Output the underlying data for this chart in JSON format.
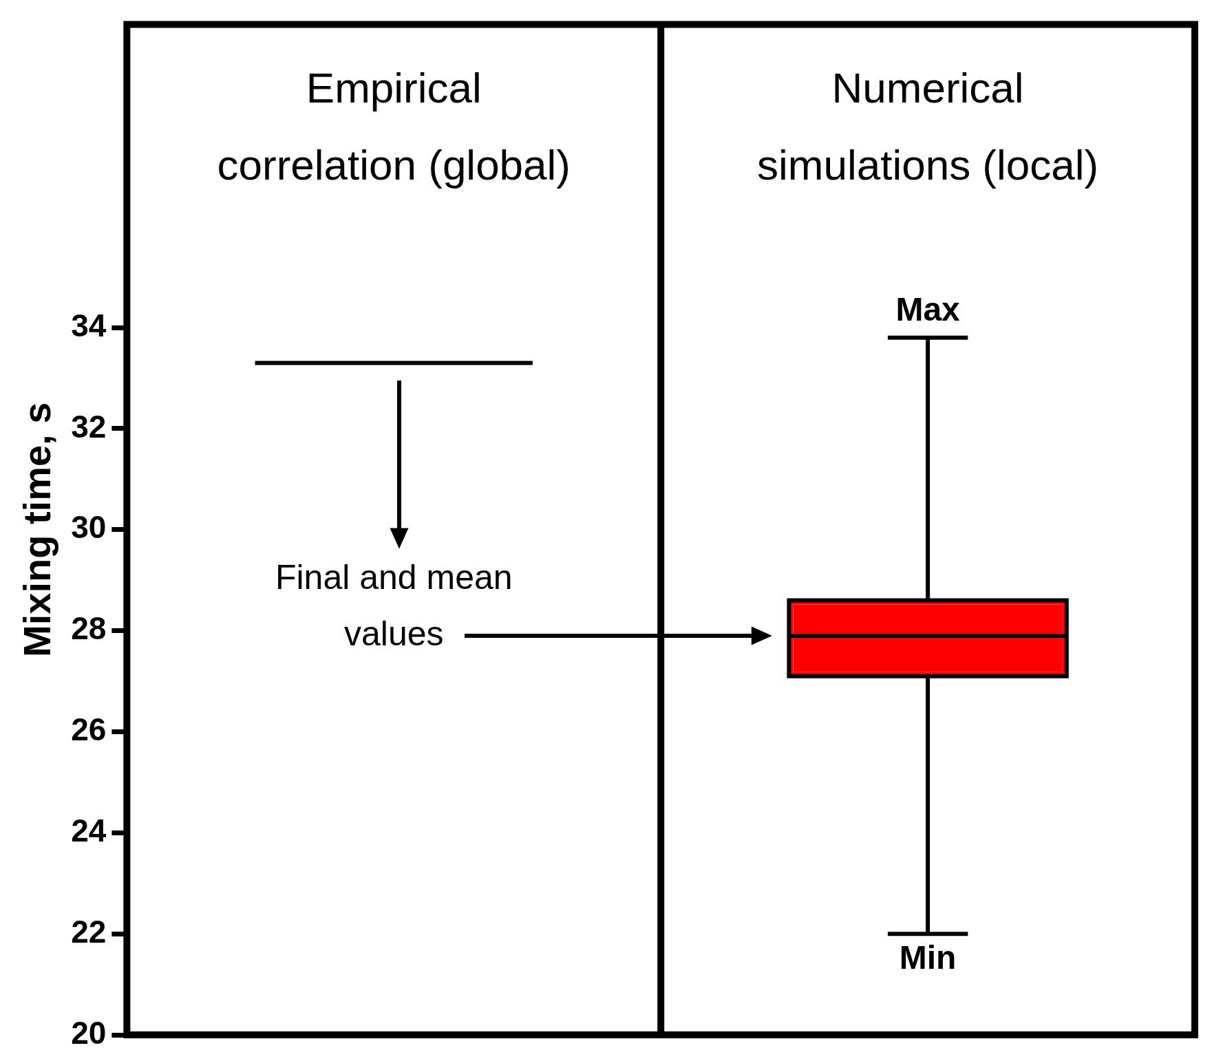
{
  "chart_data": {
    "type": "box",
    "categories": [
      "Empirical correlation (global)",
      "Numerical simulations (local)"
    ],
    "boxes": [
      {
        "low": 33.3,
        "q1": 33.3,
        "median": 33.3,
        "q3": 33.3,
        "high": 33.3
      },
      {
        "low": 22,
        "q1": 27.1,
        "median": 27.9,
        "q3": 28.6,
        "high": 33.8
      }
    ],
    "colors": [
      "#000000",
      "#ff0000"
    ],
    "ylabel": "Mixing time, s",
    "ylim": [
      20,
      40
    ],
    "yticks": [
      20,
      22,
      24,
      26,
      28,
      30,
      32,
      34
    ],
    "annotations": [
      {
        "text": "Max",
        "x": "Numerical simulations (local)",
        "y": 33.8
      },
      {
        "text": "Min",
        "x": "Numerical simulations (local)",
        "y": 22
      },
      "Final and mean values"
    ]
  }
}
